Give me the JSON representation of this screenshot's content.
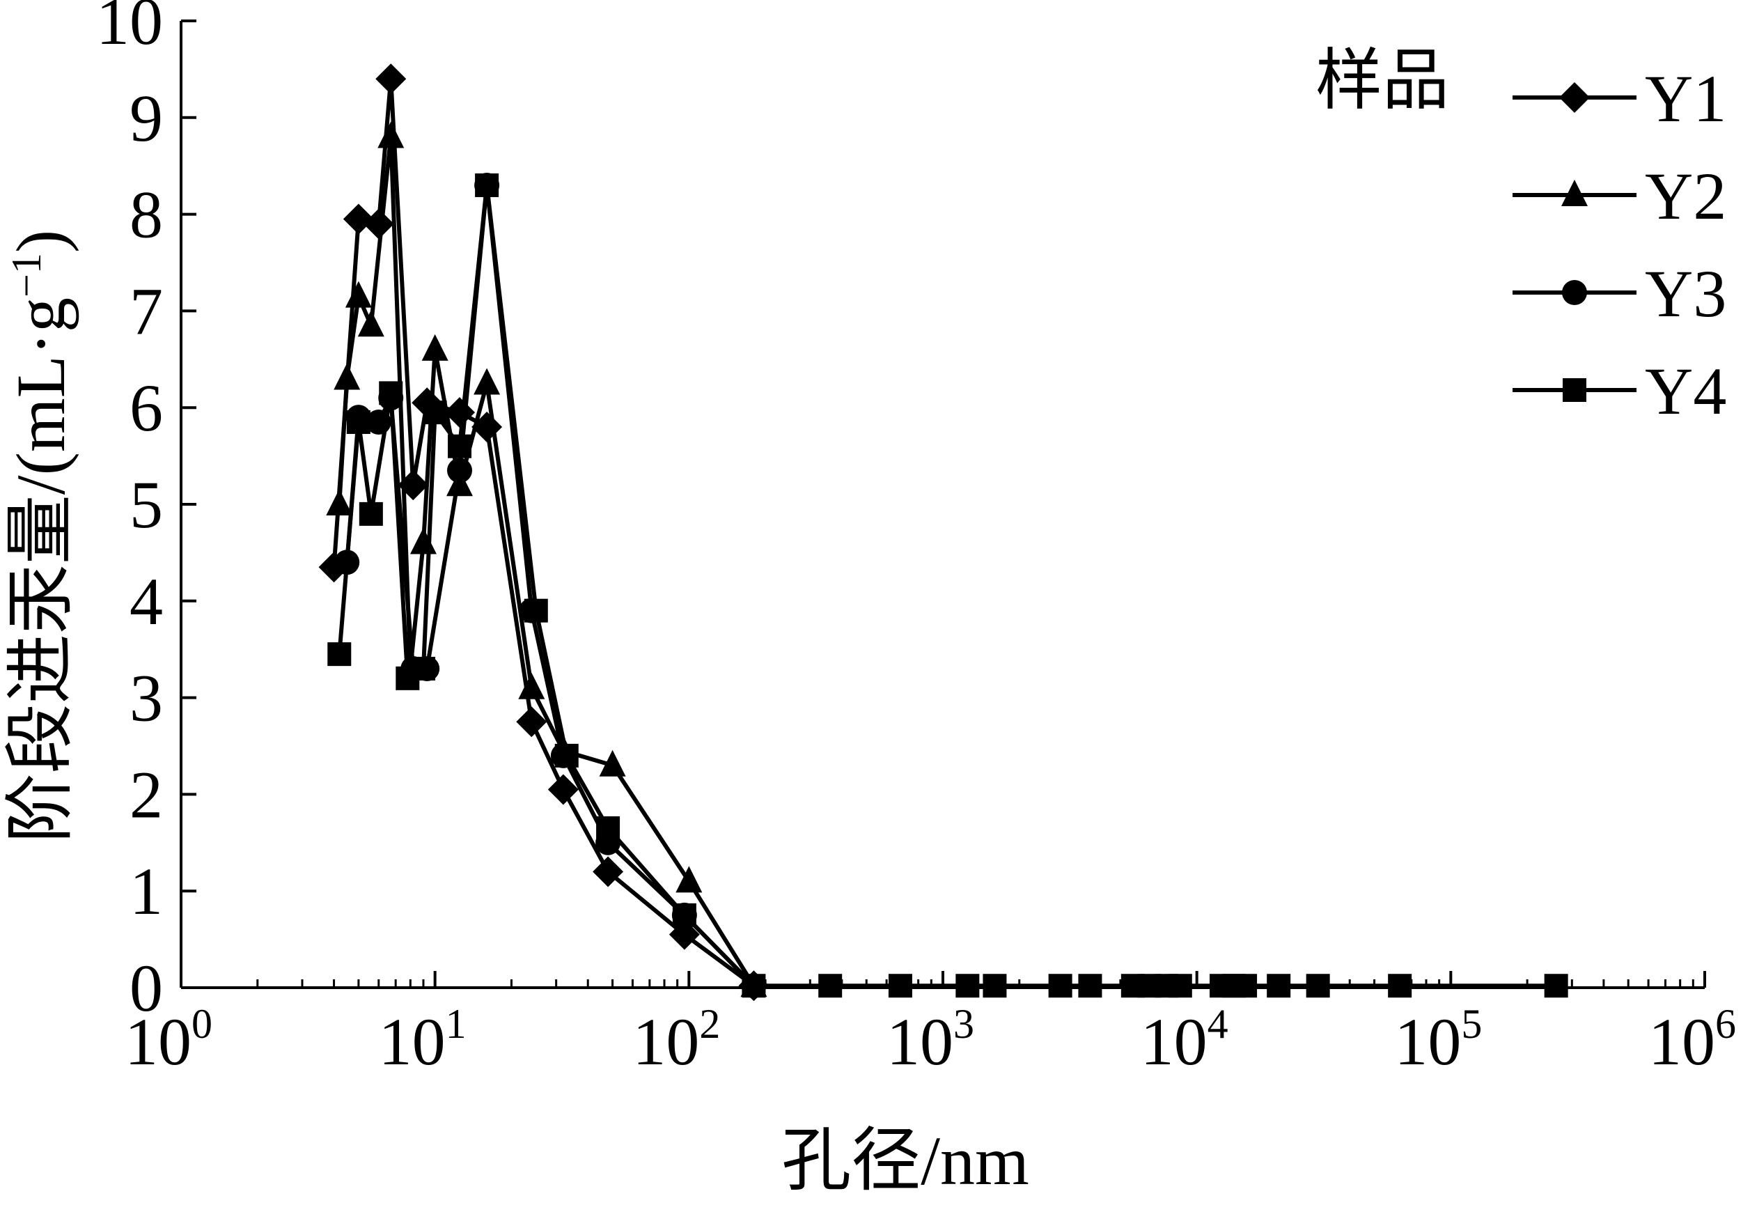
{
  "chart_data": {
    "type": "line",
    "x_scale": "log",
    "xlim": [
      1,
      1000000
    ],
    "ylim": [
      0,
      10
    ],
    "xlabel": "孔径/nm",
    "ylabel": "阶段进汞量/(mL·g",
    "ylabel_sup": "−1",
    "ylabel_close": ")",
    "legend_title": "样品",
    "legend_position": "top-right",
    "grid": false,
    "y_ticks": [
      "0",
      "1",
      "2",
      "3",
      "4",
      "5",
      "6",
      "7",
      "8",
      "9",
      "10"
    ],
    "x_ticks": [
      {
        "base": "10",
        "exp": "0"
      },
      {
        "base": "10",
        "exp": "1"
      },
      {
        "base": "10",
        "exp": "2"
      },
      {
        "base": "10",
        "exp": "3"
      },
      {
        "base": "10",
        "exp": "4"
      },
      {
        "base": "10",
        "exp": "5"
      },
      {
        "base": "10",
        "exp": "6"
      }
    ],
    "series": [
      {
        "name": "Y1",
        "marker": "diamond",
        "x": [
          4.0,
          5.0,
          6.0,
          6.7,
          8.2,
          9.3,
          12.5,
          16.0,
          24.0,
          32.0,
          48.0,
          96.0,
          180.0
        ],
        "y": [
          4.35,
          7.95,
          7.9,
          9.4,
          5.2,
          6.05,
          5.95,
          5.8,
          2.75,
          2.05,
          1.2,
          0.55,
          0.02
        ]
      },
      {
        "name": "Y2",
        "marker": "triangle",
        "x": [
          4.2,
          4.5,
          5.0,
          5.6,
          6.7,
          8.0,
          9.0,
          10.0,
          12.5,
          16.0,
          24.0,
          32.0,
          50.0,
          100.0,
          180.0
        ],
        "y": [
          5.0,
          6.3,
          7.15,
          6.85,
          8.8,
          3.3,
          4.6,
          6.6,
          5.2,
          6.25,
          3.1,
          2.45,
          2.3,
          1.1,
          0.02
        ]
      },
      {
        "name": "Y3",
        "marker": "circle",
        "x": [
          4.5,
          5.0,
          6.0,
          6.7,
          8.2,
          9.3,
          12.5,
          16.0,
          24.0,
          32.0,
          48.0,
          96.0,
          180.0
        ],
        "y": [
          4.4,
          5.9,
          5.85,
          6.1,
          3.3,
          3.3,
          5.35,
          8.3,
          3.9,
          2.4,
          1.5,
          0.75,
          0.02
        ]
      },
      {
        "name": "Y4",
        "marker": "square",
        "x": [
          4.2,
          5.0,
          5.6,
          6.7,
          7.8,
          9.0,
          10.0,
          12.5,
          16.0,
          25.0,
          33.0,
          48.0,
          96.0,
          180.0,
          360,
          680,
          1250,
          1600,
          2900,
          3800,
          5600,
          6500,
          7600,
          8600,
          12500,
          14000,
          15500,
          21000,
          30000,
          63000,
          260000
        ],
        "y": [
          3.45,
          5.85,
          4.9,
          6.15,
          3.2,
          3.3,
          5.95,
          5.6,
          8.3,
          3.9,
          2.4,
          1.65,
          0.75,
          0.02,
          0.02,
          0.02,
          0.02,
          0.02,
          0.02,
          0.02,
          0.02,
          0.02,
          0.02,
          0.02,
          0.02,
          0.02,
          0.02,
          0.02,
          0.02,
          0.02,
          0.02
        ]
      }
    ]
  }
}
